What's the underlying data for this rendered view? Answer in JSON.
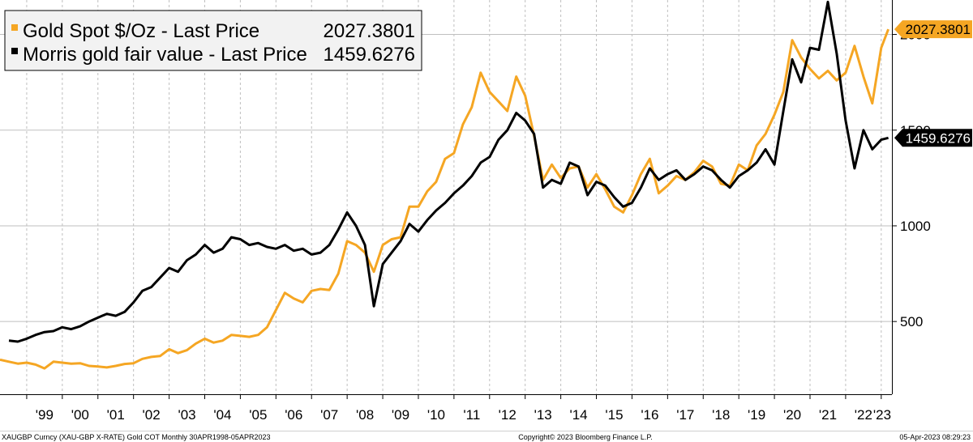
{
  "chart_data": {
    "type": "line",
    "title": "",
    "xlabel": "",
    "ylabel": "",
    "ylim": [
      120,
      2180
    ],
    "xlim": [
      1998.25,
      2023.3
    ],
    "y_ticks": [
      500,
      1000,
      1500,
      2000
    ],
    "y_tick_labels": [
      "500",
      "1000",
      "1500",
      "2000"
    ],
    "x_ticks": [
      1999,
      2000,
      2001,
      2002,
      2003,
      2004,
      2005,
      2006,
      2007,
      2008,
      2009,
      2010,
      2011,
      2012,
      2013,
      2014,
      2015,
      2016,
      2017,
      2018,
      2019,
      2020,
      2021,
      2022,
      2023
    ],
    "x_tick_labels": [
      "'99",
      "'00",
      "'01",
      "'02",
      "'03",
      "'04",
      "'05",
      "'06",
      "'07",
      "'08",
      "'09",
      "'10",
      "'11",
      "'12",
      "'13",
      "'14",
      "'15",
      "'16",
      "'17",
      "'18",
      "'19",
      "'20",
      "'21",
      "'22",
      "'23"
    ],
    "grid": true,
    "legend_position": "top-left",
    "colors": {
      "gold": "#f5a623",
      "fair": "#000000",
      "grid": "#bfbfbf"
    },
    "series": [
      {
        "name": "Gold Spot $/Oz - Last Price",
        "last_value": "2027.3801",
        "color": "#f5a623",
        "points": [
          [
            1998.25,
            300
          ],
          [
            1998.5,
            290
          ],
          [
            1998.75,
            280
          ],
          [
            1999.0,
            285
          ],
          [
            1999.25,
            275
          ],
          [
            1999.5,
            255
          ],
          [
            1999.75,
            290
          ],
          [
            2000.0,
            285
          ],
          [
            2000.25,
            280
          ],
          [
            2000.5,
            282
          ],
          [
            2000.75,
            268
          ],
          [
            2001.0,
            265
          ],
          [
            2001.25,
            260
          ],
          [
            2001.5,
            268
          ],
          [
            2001.75,
            278
          ],
          [
            2002.0,
            282
          ],
          [
            2002.25,
            305
          ],
          [
            2002.5,
            315
          ],
          [
            2002.75,
            320
          ],
          [
            2003.0,
            355
          ],
          [
            2003.25,
            335
          ],
          [
            2003.5,
            350
          ],
          [
            2003.75,
            385
          ],
          [
            2004.0,
            410
          ],
          [
            2004.25,
            390
          ],
          [
            2004.5,
            400
          ],
          [
            2004.75,
            430
          ],
          [
            2005.0,
            425
          ],
          [
            2005.25,
            420
          ],
          [
            2005.5,
            430
          ],
          [
            2005.75,
            470
          ],
          [
            2006.0,
            560
          ],
          [
            2006.25,
            650
          ],
          [
            2006.5,
            620
          ],
          [
            2006.75,
            600
          ],
          [
            2007.0,
            660
          ],
          [
            2007.25,
            670
          ],
          [
            2007.5,
            665
          ],
          [
            2007.75,
            750
          ],
          [
            2008.0,
            920
          ],
          [
            2008.25,
            900
          ],
          [
            2008.5,
            860
          ],
          [
            2008.75,
            760
          ],
          [
            2009.0,
            900
          ],
          [
            2009.25,
            930
          ],
          [
            2009.5,
            940
          ],
          [
            2009.75,
            1100
          ],
          [
            2010.0,
            1100
          ],
          [
            2010.25,
            1180
          ],
          [
            2010.5,
            1230
          ],
          [
            2010.75,
            1350
          ],
          [
            2011.0,
            1380
          ],
          [
            2011.25,
            1530
          ],
          [
            2011.5,
            1620
          ],
          [
            2011.75,
            1800
          ],
          [
            2012.0,
            1700
          ],
          [
            2012.25,
            1650
          ],
          [
            2012.5,
            1600
          ],
          [
            2012.75,
            1780
          ],
          [
            2013.0,
            1680
          ],
          [
            2013.25,
            1470
          ],
          [
            2013.5,
            1240
          ],
          [
            2013.75,
            1320
          ],
          [
            2014.0,
            1250
          ],
          [
            2014.25,
            1300
          ],
          [
            2014.5,
            1310
          ],
          [
            2014.75,
            1200
          ],
          [
            2015.0,
            1270
          ],
          [
            2015.25,
            1190
          ],
          [
            2015.5,
            1100
          ],
          [
            2015.75,
            1070
          ],
          [
            2016.0,
            1160
          ],
          [
            2016.25,
            1270
          ],
          [
            2016.5,
            1350
          ],
          [
            2016.75,
            1170
          ],
          [
            2017.0,
            1210
          ],
          [
            2017.25,
            1260
          ],
          [
            2017.5,
            1240
          ],
          [
            2017.75,
            1280
          ],
          [
            2018.0,
            1340
          ],
          [
            2018.25,
            1310
          ],
          [
            2018.5,
            1220
          ],
          [
            2018.75,
            1210
          ],
          [
            2019.0,
            1320
          ],
          [
            2019.25,
            1290
          ],
          [
            2019.5,
            1420
          ],
          [
            2019.75,
            1480
          ],
          [
            2020.0,
            1580
          ],
          [
            2020.25,
            1700
          ],
          [
            2020.5,
            1970
          ],
          [
            2020.75,
            1880
          ],
          [
            2021.0,
            1820
          ],
          [
            2021.25,
            1770
          ],
          [
            2021.5,
            1810
          ],
          [
            2021.75,
            1760
          ],
          [
            2022.0,
            1800
          ],
          [
            2022.25,
            1940
          ],
          [
            2022.5,
            1780
          ],
          [
            2022.75,
            1640
          ],
          [
            2023.0,
            1930
          ],
          [
            2023.2,
            2027.38
          ]
        ]
      },
      {
        "name": "Morris gold fair value - Last Price",
        "last_value": "1459.6276",
        "color": "#000000",
        "points": [
          [
            1998.5,
            400
          ],
          [
            1998.75,
            395
          ],
          [
            1999.0,
            410
          ],
          [
            1999.25,
            430
          ],
          [
            1999.5,
            445
          ],
          [
            1999.75,
            450
          ],
          [
            2000.0,
            470
          ],
          [
            2000.25,
            460
          ],
          [
            2000.5,
            475
          ],
          [
            2000.75,
            500
          ],
          [
            2001.0,
            520
          ],
          [
            2001.25,
            540
          ],
          [
            2001.5,
            530
          ],
          [
            2001.75,
            550
          ],
          [
            2002.0,
            600
          ],
          [
            2002.25,
            660
          ],
          [
            2002.5,
            680
          ],
          [
            2002.75,
            730
          ],
          [
            2003.0,
            780
          ],
          [
            2003.25,
            760
          ],
          [
            2003.5,
            820
          ],
          [
            2003.75,
            850
          ],
          [
            2004.0,
            900
          ],
          [
            2004.25,
            860
          ],
          [
            2004.5,
            880
          ],
          [
            2004.75,
            940
          ],
          [
            2005.0,
            930
          ],
          [
            2005.25,
            900
          ],
          [
            2005.5,
            910
          ],
          [
            2005.75,
            890
          ],
          [
            2006.0,
            880
          ],
          [
            2006.25,
            900
          ],
          [
            2006.5,
            870
          ],
          [
            2006.75,
            880
          ],
          [
            2007.0,
            850
          ],
          [
            2007.25,
            860
          ],
          [
            2007.5,
            900
          ],
          [
            2007.75,
            980
          ],
          [
            2008.0,
            1070
          ],
          [
            2008.25,
            1000
          ],
          [
            2008.5,
            900
          ],
          [
            2008.75,
            580
          ],
          [
            2009.0,
            800
          ],
          [
            2009.25,
            860
          ],
          [
            2009.5,
            920
          ],
          [
            2009.75,
            1010
          ],
          [
            2010.0,
            970
          ],
          [
            2010.25,
            1030
          ],
          [
            2010.5,
            1080
          ],
          [
            2010.75,
            1120
          ],
          [
            2011.0,
            1170
          ],
          [
            2011.25,
            1210
          ],
          [
            2011.5,
            1260
          ],
          [
            2011.75,
            1330
          ],
          [
            2012.0,
            1360
          ],
          [
            2012.25,
            1450
          ],
          [
            2012.5,
            1500
          ],
          [
            2012.75,
            1590
          ],
          [
            2013.0,
            1550
          ],
          [
            2013.25,
            1480
          ],
          [
            2013.5,
            1200
          ],
          [
            2013.75,
            1240
          ],
          [
            2014.0,
            1220
          ],
          [
            2014.25,
            1330
          ],
          [
            2014.5,
            1310
          ],
          [
            2014.75,
            1160
          ],
          [
            2015.0,
            1230
          ],
          [
            2015.25,
            1210
          ],
          [
            2015.5,
            1150
          ],
          [
            2015.75,
            1100
          ],
          [
            2016.0,
            1120
          ],
          [
            2016.25,
            1200
          ],
          [
            2016.5,
            1300
          ],
          [
            2016.75,
            1240
          ],
          [
            2017.0,
            1270
          ],
          [
            2017.25,
            1290
          ],
          [
            2017.5,
            1240
          ],
          [
            2017.75,
            1270
          ],
          [
            2018.0,
            1310
          ],
          [
            2018.25,
            1290
          ],
          [
            2018.5,
            1240
          ],
          [
            2018.75,
            1200
          ],
          [
            2019.0,
            1260
          ],
          [
            2019.25,
            1290
          ],
          [
            2019.5,
            1330
          ],
          [
            2019.75,
            1400
          ],
          [
            2020.0,
            1320
          ],
          [
            2020.25,
            1600
          ],
          [
            2020.5,
            1870
          ],
          [
            2020.75,
            1750
          ],
          [
            2021.0,
            1930
          ],
          [
            2021.25,
            1920
          ],
          [
            2021.5,
            2170
          ],
          [
            2021.75,
            1900
          ],
          [
            2022.0,
            1550
          ],
          [
            2022.25,
            1300
          ],
          [
            2022.5,
            1500
          ],
          [
            2022.75,
            1400
          ],
          [
            2023.0,
            1450
          ],
          [
            2023.2,
            1459.63
          ]
        ]
      }
    ],
    "footer_left": "XAUGBP Curncy (XAU-GBP X-RATE) Gold COT  Monthly 30APR1998-05APR2023",
    "footer_center": "Copyright© 2023 Bloomberg Finance L.P.",
    "footer_right": "05-Apr-2023 08:29:23"
  }
}
